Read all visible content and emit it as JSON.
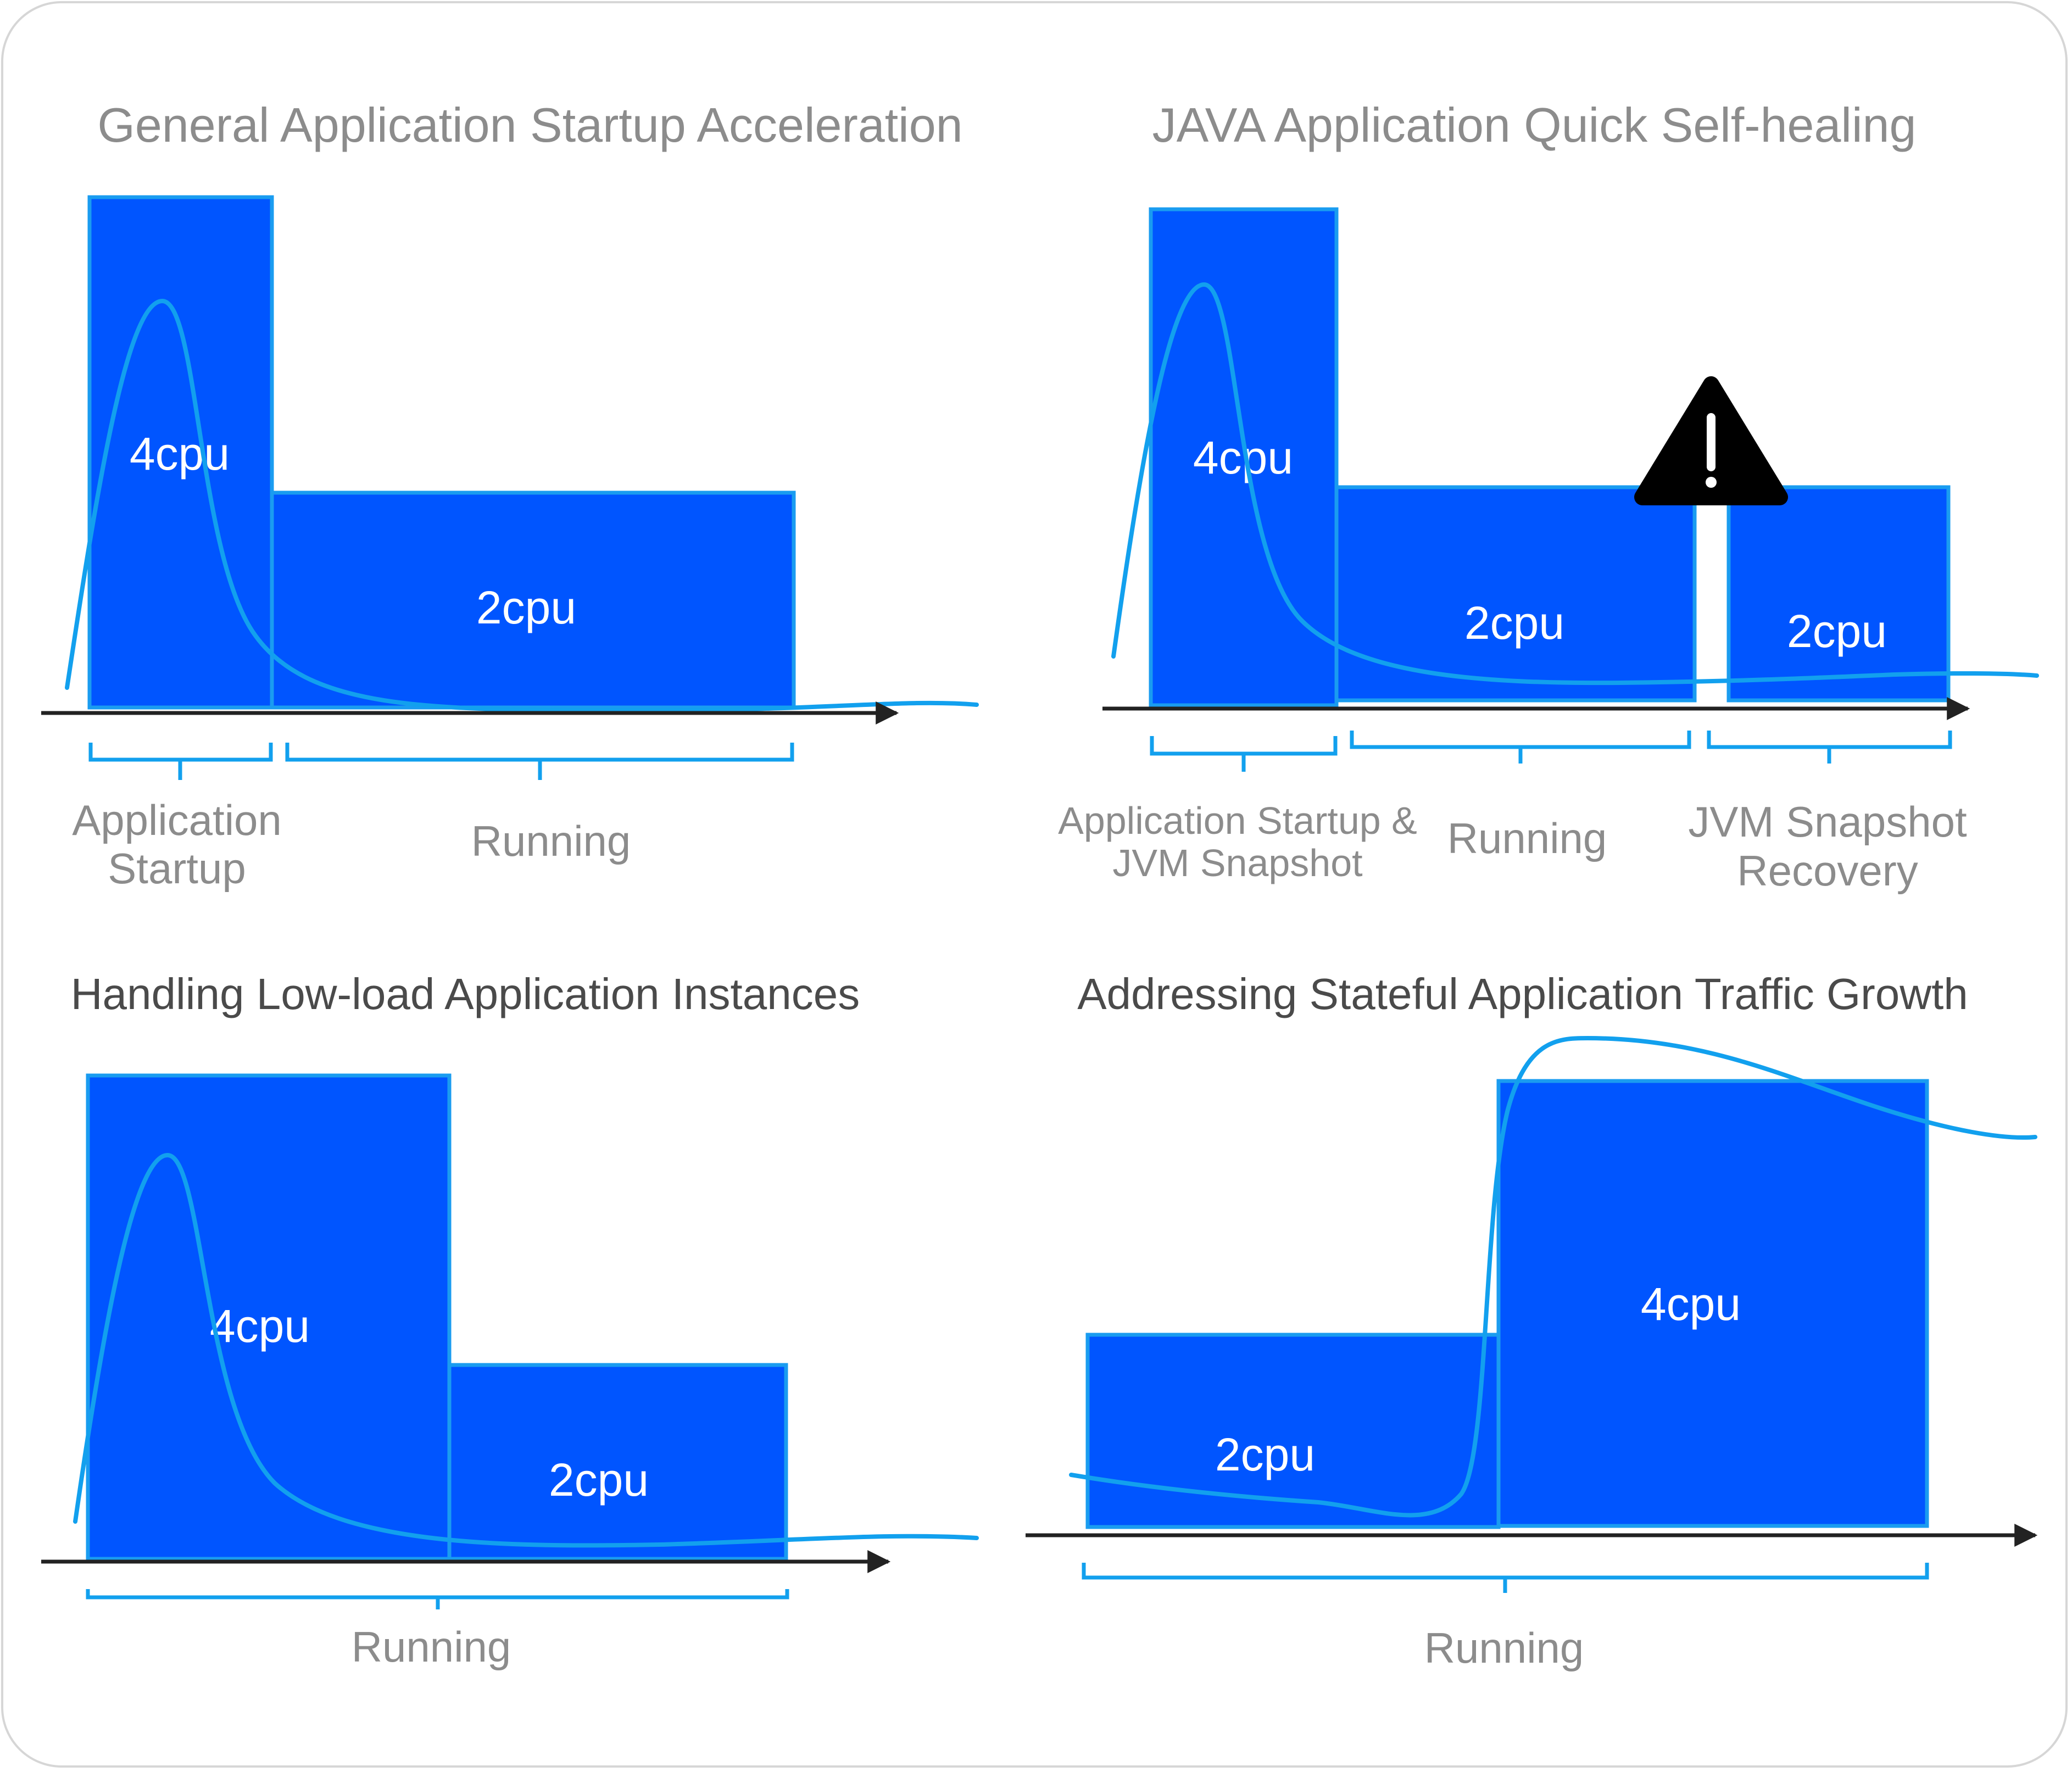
{
  "panels": [
    {
      "title": "General Application Startup Acceleration",
      "blocks": [
        "4cpu",
        "2cpu"
      ],
      "phases": [
        "Application",
        "Startup",
        "Running"
      ]
    },
    {
      "title": "JAVA Application Quick Self-healing",
      "blocks": [
        "4cpu",
        "2cpu",
        "2cpu"
      ],
      "phases": [
        "Application Startup &",
        "JVM Snapshot",
        "Running",
        "JVM Snapshot",
        "Recovery"
      ],
      "warning_icon": "warning-triangle-icon"
    },
    {
      "title": "Handling Low-load Application Instances",
      "blocks": [
        "4cpu",
        "2cpu"
      ],
      "phases": [
        "Running"
      ]
    },
    {
      "title": "Addressing Stateful Application Traffic Growth",
      "blocks": [
        "2cpu",
        "4cpu"
      ],
      "phases": [
        "Running"
      ]
    }
  ],
  "colors": {
    "block_fill": "#0055ff",
    "block_border": "#1a9cf0",
    "curve": "#12a0ee",
    "axis": "#222222",
    "title_top": "#8c8c8c",
    "title_bottom": "#4a4a4a",
    "label": "#8c8c8c"
  }
}
